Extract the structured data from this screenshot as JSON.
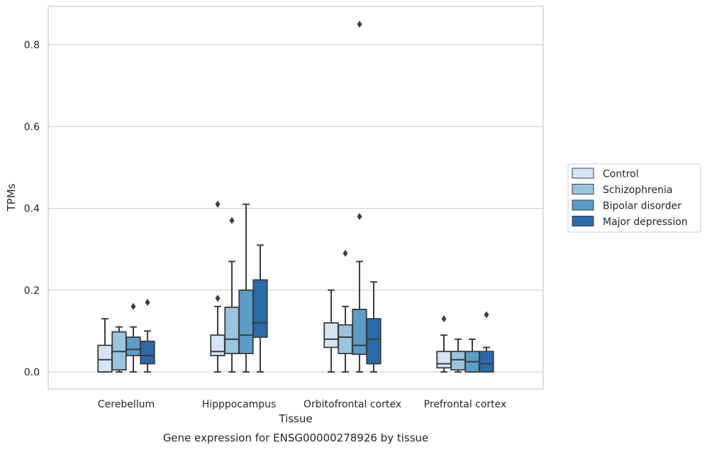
{
  "chart_data": {
    "type": "box",
    "xlabel": "Tissue",
    "ylabel": "TPMs",
    "caption": "Gene expression for ENSG00000278926 by tissue",
    "ylim": [
      -0.042,
      0.895
    ],
    "yticks": [
      "0.0",
      "0.2",
      "0.4",
      "0.6",
      "0.8"
    ],
    "ytick_values": [
      0.0,
      0.2,
      0.4,
      0.6,
      0.8
    ],
    "grid": true,
    "legend_position": "right",
    "categories": [
      "Cerebellum",
      "Hipppocampus",
      "Orbitofrontal cortex",
      "Prefrontal cortex"
    ],
    "series": [
      {
        "name": "Control",
        "color": "#d6e5f4",
        "boxes": [
          {
            "whisker_low": 0.0,
            "q1": 0.0,
            "median": 0.03,
            "q3": 0.065,
            "whisker_high": 0.13,
            "outliers": []
          },
          {
            "whisker_low": 0.0,
            "q1": 0.04,
            "median": 0.05,
            "q3": 0.09,
            "whisker_high": 0.16,
            "outliers": [
              0.18,
              0.41
            ]
          },
          {
            "whisker_low": 0.0,
            "q1": 0.06,
            "median": 0.08,
            "q3": 0.12,
            "whisker_high": 0.2,
            "outliers": []
          },
          {
            "whisker_low": 0.0,
            "q1": 0.01,
            "median": 0.02,
            "q3": 0.05,
            "whisker_high": 0.09,
            "outliers": [
              0.13
            ]
          }
        ]
      },
      {
        "name": "Schizophrenia",
        "color": "#9bc5df",
        "boxes": [
          {
            "whisker_low": 0.0,
            "q1": 0.005,
            "median": 0.05,
            "q3": 0.098,
            "whisker_high": 0.11,
            "outliers": []
          },
          {
            "whisker_low": 0.0,
            "q1": 0.045,
            "median": 0.08,
            "q3": 0.158,
            "whisker_high": 0.27,
            "outliers": [
              0.37
            ]
          },
          {
            "whisker_low": 0.0,
            "q1": 0.045,
            "median": 0.085,
            "q3": 0.115,
            "whisker_high": 0.16,
            "outliers": [
              0.29
            ]
          },
          {
            "whisker_low": 0.0,
            "q1": 0.005,
            "median": 0.03,
            "q3": 0.05,
            "whisker_high": 0.08,
            "outliers": []
          }
        ]
      },
      {
        "name": "Bipolar disorder",
        "color": "#5a9dc9",
        "boxes": [
          {
            "whisker_low": 0.0,
            "q1": 0.04,
            "median": 0.055,
            "q3": 0.085,
            "whisker_high": 0.11,
            "outliers": [
              0.16
            ]
          },
          {
            "whisker_low": 0.0,
            "q1": 0.045,
            "median": 0.09,
            "q3": 0.2,
            "whisker_high": 0.41,
            "outliers": []
          },
          {
            "whisker_low": 0.0,
            "q1": 0.043,
            "median": 0.065,
            "q3": 0.153,
            "whisker_high": 0.27,
            "outliers": [
              0.38,
              0.85
            ]
          },
          {
            "whisker_low": 0.0,
            "q1": 0.0,
            "median": 0.025,
            "q3": 0.05,
            "whisker_high": 0.08,
            "outliers": []
          }
        ]
      },
      {
        "name": "Major depression",
        "color": "#2b6aaa",
        "boxes": [
          {
            "whisker_low": 0.0,
            "q1": 0.02,
            "median": 0.04,
            "q3": 0.075,
            "whisker_high": 0.1,
            "outliers": [
              0.17
            ]
          },
          {
            "whisker_low": 0.0,
            "q1": 0.085,
            "median": 0.12,
            "q3": 0.225,
            "whisker_high": 0.31,
            "outliers": []
          },
          {
            "whisker_low": 0.0,
            "q1": 0.02,
            "median": 0.08,
            "q3": 0.13,
            "whisker_high": 0.22,
            "outliers": []
          },
          {
            "whisker_low": 0.0,
            "q1": 0.0,
            "median": 0.02,
            "q3": 0.05,
            "whisker_high": 0.06,
            "outliers": [
              0.14
            ]
          }
        ]
      }
    ]
  }
}
